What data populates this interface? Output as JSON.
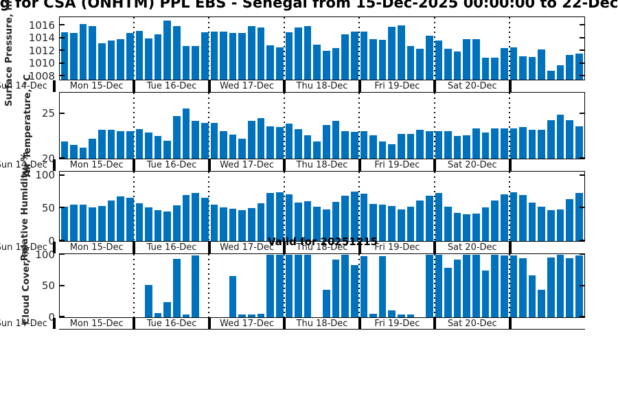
{
  "title": "g for CSA (ONHTM) PPL EBS  - Senegal from 15-Dec-2025 00:00:00 to 22-Dec",
  "watermark": "Valid for 20251215",
  "colors": {
    "bar": "#0072BD",
    "frame": "#000000",
    "tick_text": "#262626"
  },
  "x_axis": {
    "left_edge_label": "Sun 14-Dec",
    "day_labels": [
      "Mon 15-Dec",
      "Tue 16-Dec",
      "Wed 17-Dec",
      "Thu 18-Dec",
      "Fri 19-Dec",
      "Sat 20-Dec"
    ],
    "days_shown": 7,
    "bars_per_day": 8,
    "time_step_hours": 3
  },
  "chart_data": [
    {
      "type": "bar",
      "ylabel": "Surface Pressure, hPa",
      "ylim": [
        1007.5,
        1017.2
      ],
      "yticks": [
        1008,
        1010,
        1012,
        1014,
        1016
      ],
      "grid": "dotted vertical at day boundaries",
      "values": [
        1014.9,
        1014.8,
        1016.2,
        1015.9,
        1013.2,
        1013.6,
        1013.9,
        1014.8,
        1015.2,
        1014.0,
        1014.6,
        1016.8,
        1015.9,
        1012.8,
        1012.8,
        1014.9,
        1015.0,
        1015.0,
        1014.8,
        1014.8,
        1015.9,
        1015.7,
        1012.9,
        1012.6,
        1014.9,
        1015.7,
        1015.9,
        1013.0,
        1012.0,
        1012.5,
        1014.6,
        1015.0,
        1015.0,
        1013.9,
        1013.8,
        1015.8,
        1016.0,
        1012.8,
        1012.4,
        1014.4,
        1013.6,
        1012.4,
        1011.9,
        1013.9,
        1013.9,
        1011.0,
        1010.9,
        1012.5,
        1012.6,
        1011.2,
        1011.1,
        1012.2,
        1008.9,
        1009.8,
        1011.4,
        1011.6
      ]
    },
    {
      "type": "bar",
      "ylabel": "Air Temperature, °C",
      "ylim": [
        20,
        27.3
      ],
      "yticks": [
        20,
        25
      ],
      "grid": "dotted vertical at day boundaries",
      "values": [
        21.9,
        21.5,
        21.2,
        22.2,
        23.2,
        23.2,
        23.1,
        23.1,
        23.3,
        22.9,
        22.5,
        22.0,
        24.8,
        25.6,
        24.2,
        24.0,
        24.0,
        23.1,
        22.7,
        22.2,
        24.2,
        24.5,
        23.6,
        23.5,
        23.9,
        23.3,
        22.6,
        21.9,
        23.8,
        24.2,
        23.1,
        23.0,
        23.1,
        22.6,
        21.9,
        21.6,
        22.8,
        22.8,
        23.2,
        23.1,
        23.1,
        23.1,
        22.5,
        22.6,
        23.4,
        22.9,
        23.4,
        23.4,
        23.4,
        23.5,
        23.2,
        23.2,
        24.3,
        24.9,
        24.3,
        23.6
      ]
    },
    {
      "type": "bar",
      "ylabel": "Relative Humidity, %",
      "ylim": [
        0,
        105
      ],
      "yticks": [
        0,
        50,
        100
      ],
      "grid": "dotted vertical at day boundaries",
      "values": [
        52,
        56,
        56,
        51,
        54,
        62,
        68,
        66,
        58,
        51,
        47,
        45,
        55,
        70,
        73,
        66,
        56,
        51,
        49,
        47,
        50,
        58,
        73,
        75,
        71,
        59,
        61,
        53,
        48,
        60,
        69,
        76,
        72,
        57,
        56,
        54,
        48,
        53,
        62,
        69,
        73,
        53,
        43,
        41,
        42,
        51,
        62,
        71,
        75,
        70,
        59,
        52,
        47,
        48,
        64,
        73
      ]
    },
    {
      "type": "bar",
      "ylabel": "Cloud Cover, %",
      "ylim": [
        0,
        100
      ],
      "yticks": [
        0,
        50,
        100
      ],
      "grid": "dotted vertical at day boundaries",
      "values": [
        0,
        0,
        0,
        0,
        0,
        0,
        0,
        0,
        0,
        52,
        7,
        24,
        93,
        4,
        99,
        0,
        0,
        0,
        66,
        4,
        4,
        6,
        100,
        100,
        100,
        100,
        100,
        0,
        44,
        92,
        100,
        83,
        98,
        6,
        98,
        11,
        4,
        4,
        0,
        100,
        100,
        79,
        92,
        100,
        100,
        75,
        100,
        99,
        99,
        95,
        67,
        44,
        96,
        100,
        95,
        99
      ]
    }
  ]
}
